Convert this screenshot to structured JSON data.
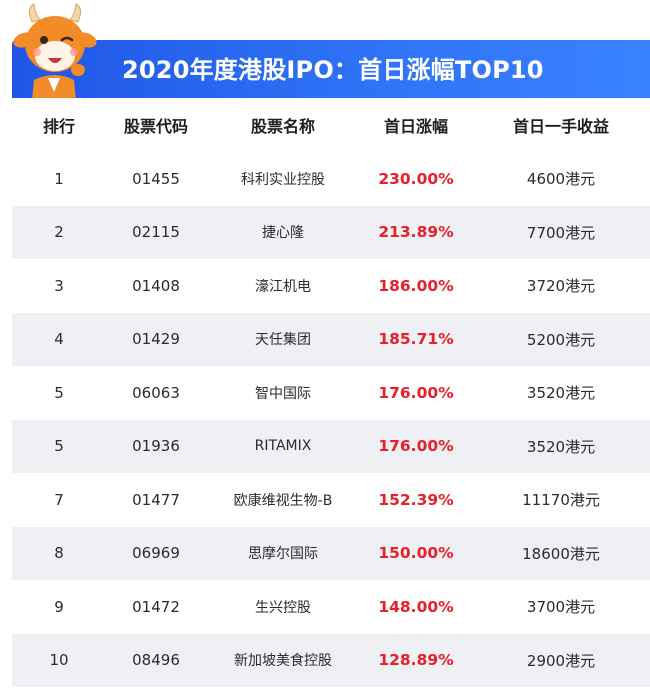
{
  "title": "2020年度港股IPO：首日涨幅TOP10",
  "colors": {
    "banner": "#2f6ef5",
    "gain": "#e8202a",
    "stripe": "#eef0f4"
  },
  "mascot": "cartoon-calf-mascot-icon",
  "chart_data": {
    "type": "table",
    "title": "2020年度港股IPO：首日涨幅TOP10",
    "columns": [
      "排行",
      "股票代码",
      "股票名称",
      "首日涨幅",
      "首日一手收益"
    ],
    "rows": [
      [
        "1",
        "01455",
        "科利实业控股",
        "230.00%",
        "4600港元"
      ],
      [
        "2",
        "02115",
        "捷心隆",
        "213.89%",
        "7700港元"
      ],
      [
        "3",
        "01408",
        "濠江机电",
        "186.00%",
        "3720港元"
      ],
      [
        "4",
        "01429",
        "天任集团",
        "185.71%",
        "5200港元"
      ],
      [
        "5",
        "06063",
        "智中国际",
        "176.00%",
        "3520港元"
      ],
      [
        "5",
        "01936",
        "RITAMIX",
        "176.00%",
        "3520港元"
      ],
      [
        "7",
        "01477",
        "欧康维视生物-B",
        "152.39%",
        "11170港元"
      ],
      [
        "8",
        "06969",
        "思摩尔国际",
        "150.00%",
        "18600港元"
      ],
      [
        "9",
        "01472",
        "生兴控股",
        "148.00%",
        "3700港元"
      ],
      [
        "10",
        "08496",
        "新加坡美食控股",
        "128.89%",
        "2900港元"
      ]
    ]
  }
}
